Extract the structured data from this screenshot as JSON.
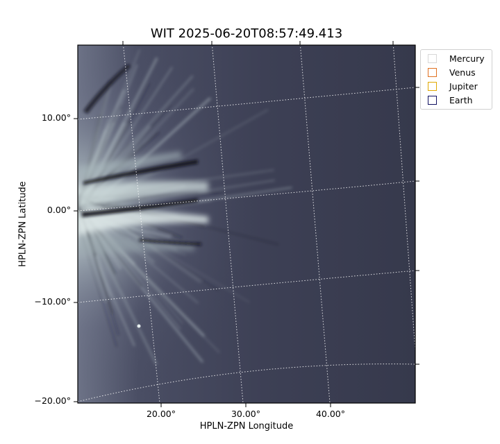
{
  "title": "WIT 2025-06-20T08:57:49.413",
  "xlabel": "HPLN-ZPN Longitude",
  "ylabel": "HPLN-ZPN Latitude",
  "x_ticks": [
    "20.00°",
    "30.00°",
    "40.00°"
  ],
  "y_ticks": [
    "10.00°",
    "0.00°",
    "−10.00°",
    "−20.00°"
  ],
  "legend": [
    {
      "label": "Mercury",
      "color": "#d8d8d8"
    },
    {
      "label": "Venus",
      "color": "#e07020"
    },
    {
      "label": "Jupiter",
      "color": "#e0a800"
    },
    {
      "label": "Earth",
      "color": "#101060"
    }
  ],
  "colors": {
    "background": "#3a3d52",
    "streamer": "#dfeaea",
    "grid": "#ffffff"
  }
}
